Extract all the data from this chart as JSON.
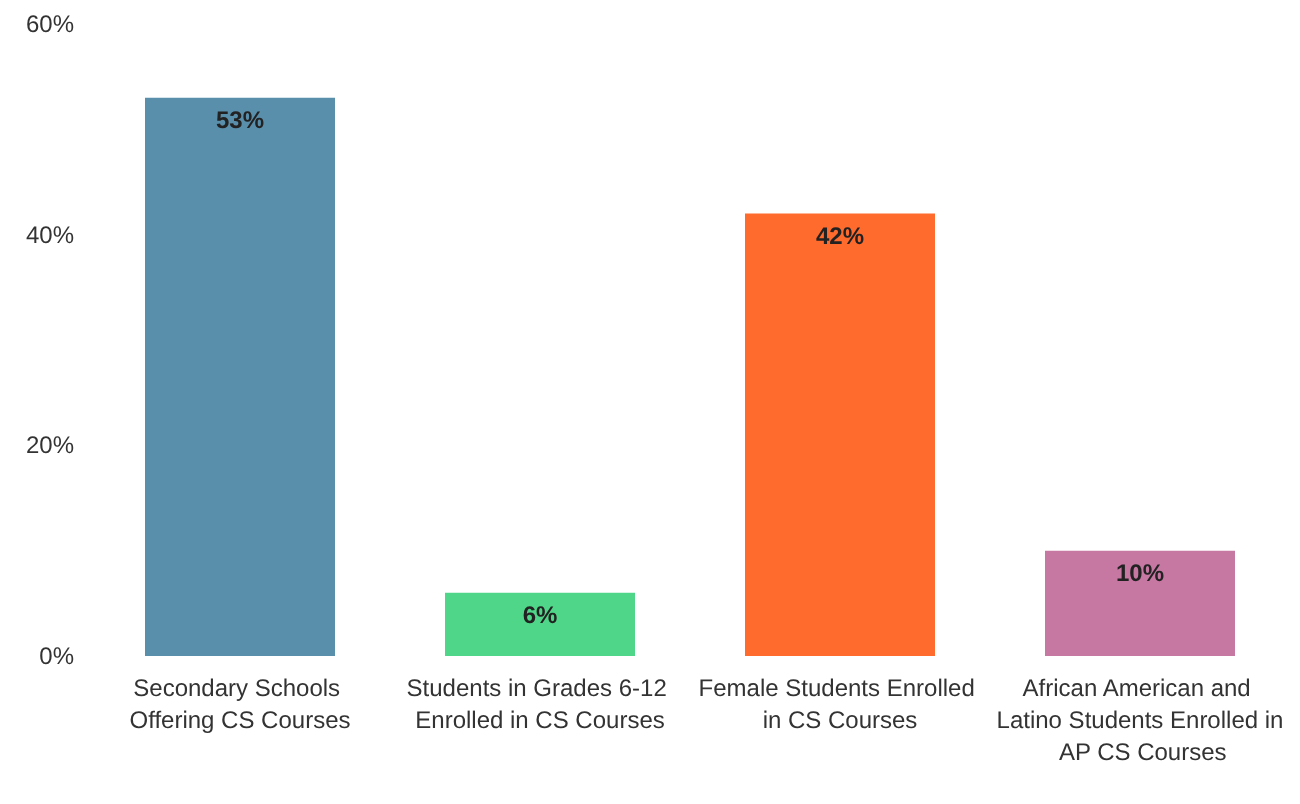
{
  "chart_data": {
    "type": "bar",
    "categories": [
      "Secondary Schools Offering CS Courses",
      "Students in Grades 6-12 Enrolled in CS Courses",
      "Female Students Enrolled in CS Courses",
      "African American and Latino Students Enrolled in AP CS Courses"
    ],
    "values": [
      53,
      6,
      42,
      10
    ],
    "colors": [
      "#5a8fac",
      "#4fd688",
      "#ff6a2d",
      "#c678a3"
    ],
    "value_labels": [
      "53%",
      "6%",
      "42%",
      "10%"
    ],
    "ylim": [
      0,
      60
    ],
    "yticks": [
      {
        "value": 0,
        "label": "0%"
      },
      {
        "value": 20,
        "label": "20%"
      },
      {
        "value": 40,
        "label": "40%"
      },
      {
        "value": 60,
        "label": "60%"
      }
    ],
    "grid": false
  }
}
